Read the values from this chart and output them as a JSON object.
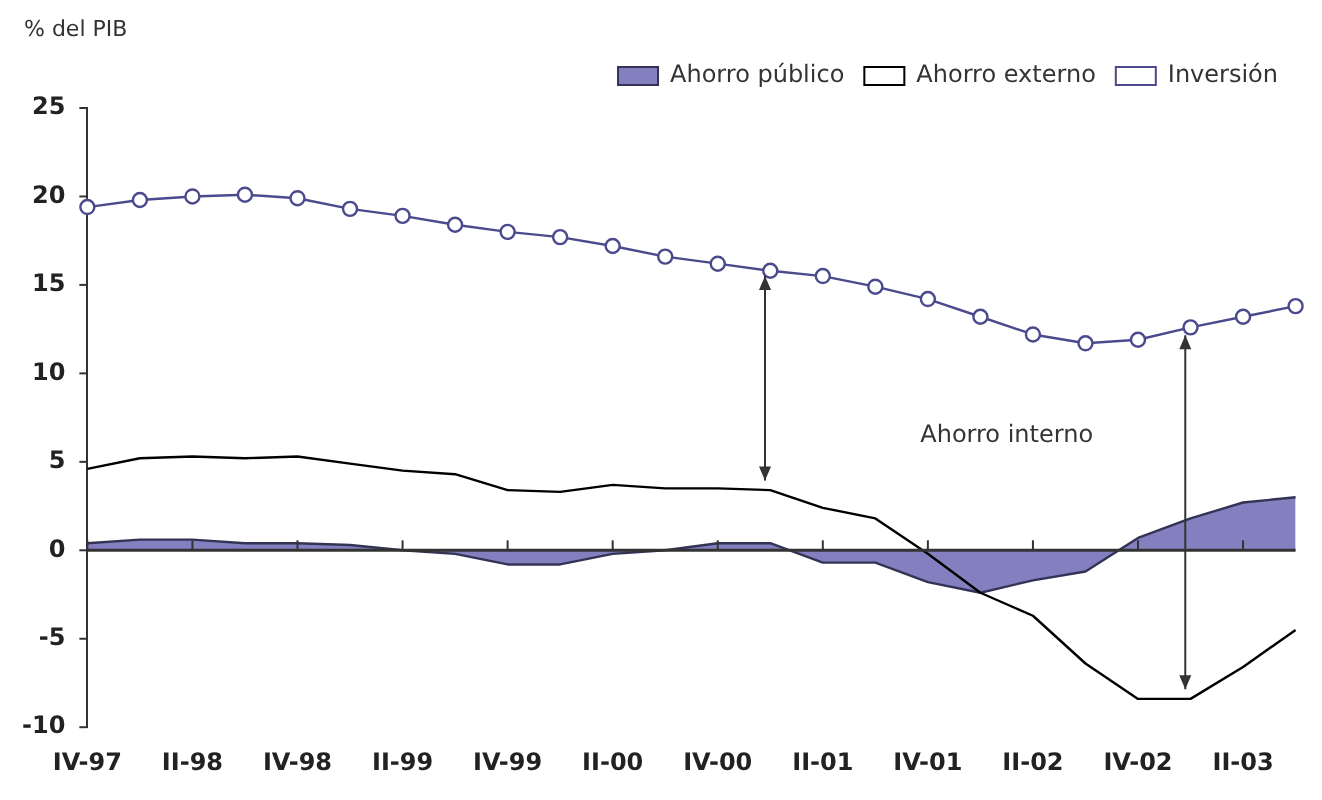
{
  "chart_data": {
    "type": "line",
    "ylabel": "% del PIB",
    "categories": [
      "IV-97",
      null,
      "II-98",
      null,
      "IV-98",
      null,
      "II-99",
      null,
      "IV-99",
      null,
      "II-00",
      null,
      "IV-00",
      null,
      "II-01",
      null,
      "IV-01",
      null,
      "II-02",
      null,
      "IV-02",
      null,
      "II-03",
      null
    ],
    "series": [
      {
        "name": "Ahorro público",
        "type": "area",
        "color": "#8480c0",
        "values": [
          0.4,
          0.6,
          0.6,
          0.4,
          0.4,
          0.3,
          0,
          -0.2,
          -0.8,
          -0.8,
          -0.2,
          0,
          0.4,
          0.4,
          -0.7,
          -0.7,
          -1.8,
          -2.4,
          -1.7,
          -1.2,
          0.7,
          1.8,
          2.7,
          3.0
        ]
      },
      {
        "name": "Ahorro externo",
        "type": "line",
        "color": "#000000",
        "values": [
          4.6,
          5.2,
          5.3,
          5.2,
          5.3,
          4.9,
          4.5,
          4.3,
          3.4,
          3.3,
          3.7,
          3.5,
          3.5,
          3.4,
          2.4,
          1.8,
          -0.2,
          -2.4,
          -3.7,
          -6.4,
          -8.4,
          -8.4,
          -6.6,
          -4.5
        ]
      },
      {
        "name": "Inversión",
        "type": "line",
        "color": "#4a4a8c",
        "marker": "circle",
        "values": [
          19.4,
          19.8,
          20.0,
          20.1,
          19.9,
          19.3,
          18.9,
          18.4,
          18.0,
          17.7,
          17.2,
          16.6,
          16.2,
          15.8,
          15.5,
          14.9,
          14.2,
          13.2,
          12.2,
          11.7,
          11.9,
          12.6,
          13.2,
          13.8
        ]
      }
    ],
    "ylim": [
      -10,
      25
    ],
    "yticks": [
      -10,
      -5,
      0,
      5,
      10,
      15,
      20,
      25
    ],
    "grid": false,
    "ref_lines": [
      {
        "axis": "y",
        "value": 0,
        "color": "#333333"
      }
    ],
    "legend": "top right",
    "annotations": [
      "Ahorro interno"
    ]
  }
}
